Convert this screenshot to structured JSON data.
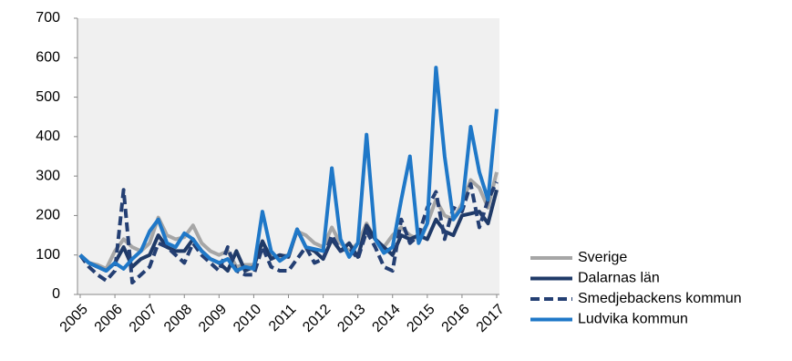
{
  "chart_data": {
    "type": "line",
    "x": [
      2005,
      2005.25,
      2005.5,
      2005.75,
      2006,
      2006.25,
      2006.5,
      2006.75,
      2007,
      2007.25,
      2007.5,
      2007.75,
      2008,
      2008.25,
      2008.5,
      2008.75,
      2009,
      2009.25,
      2009.5,
      2009.75,
      2010,
      2010.25,
      2010.5,
      2010.75,
      2011,
      2011.25,
      2011.5,
      2011.75,
      2012,
      2012.25,
      2012.5,
      2012.75,
      2013,
      2013.25,
      2013.5,
      2013.75,
      2014,
      2014.25,
      2014.5,
      2014.75,
      2015,
      2015.25,
      2015.5,
      2015.75,
      2016,
      2016.25,
      2016.5,
      2016.75,
      2017
    ],
    "series": [
      {
        "name": "Sverige",
        "color": "#a6a6a6",
        "dashed": false,
        "values": [
          100,
          80,
          75,
          65,
          110,
          140,
          120,
          110,
          130,
          195,
          150,
          140,
          145,
          175,
          130,
          110,
          100,
          110,
          70,
          75,
          75,
          130,
          100,
          95,
          100,
          160,
          150,
          130,
          120,
          170,
          130,
          110,
          130,
          180,
          140,
          120,
          150,
          170,
          150,
          140,
          180,
          240,
          200,
          190,
          230,
          290,
          270,
          220,
          310
        ]
      },
      {
        "name": "Dalarnas län",
        "color": "#1f3a68",
        "dashed": false,
        "values": [
          100,
          80,
          70,
          60,
          80,
          120,
          70,
          90,
          100,
          150,
          120,
          110,
          110,
          140,
          110,
          90,
          80,
          60,
          110,
          60,
          70,
          135,
          90,
          100,
          95,
          165,
          120,
          110,
          90,
          140,
          110,
          130,
          95,
          175,
          140,
          120,
          100,
          150,
          140,
          150,
          140,
          190,
          160,
          150,
          200,
          205,
          210,
          180,
          265
        ]
      },
      {
        "name": "Smedjebackens kommun",
        "color": "#243f73",
        "dashed": true,
        "values": [
          100,
          70,
          50,
          35,
          60,
          265,
          30,
          50,
          70,
          130,
          120,
          100,
          80,
          130,
          100,
          80,
          60,
          120,
          60,
          50,
          50,
          120,
          70,
          60,
          60,
          90,
          120,
          80,
          90,
          150,
          110,
          120,
          90,
          160,
          120,
          70,
          60,
          190,
          130,
          150,
          220,
          260,
          140,
          220,
          210,
          280,
          170,
          240,
          285
        ]
      },
      {
        "name": "Ludvika kommun",
        "color": "#1f78c8",
        "dashed": false,
        "values": [
          100,
          80,
          70,
          60,
          80,
          65,
          90,
          110,
          160,
          190,
          130,
          120,
          155,
          140,
          110,
          90,
          80,
          90,
          60,
          70,
          65,
          210,
          110,
          85,
          100,
          165,
          120,
          115,
          110,
          320,
          140,
          95,
          130,
          405,
          140,
          105,
          120,
          240,
          350,
          130,
          180,
          575,
          350,
          190,
          220,
          425,
          310,
          240,
          470
        ]
      }
    ],
    "xlim": [
      2005,
      2017
    ],
    "xticks": [
      2005,
      2006,
      2007,
      2008,
      2009,
      2010,
      2011,
      2012,
      2013,
      2014,
      2015,
      2016,
      2017
    ],
    "ylim": [
      0,
      700
    ],
    "yticks": [
      0,
      100,
      200,
      300,
      400,
      500,
      600,
      700
    ],
    "grid": false,
    "legend": "bottom-right"
  }
}
